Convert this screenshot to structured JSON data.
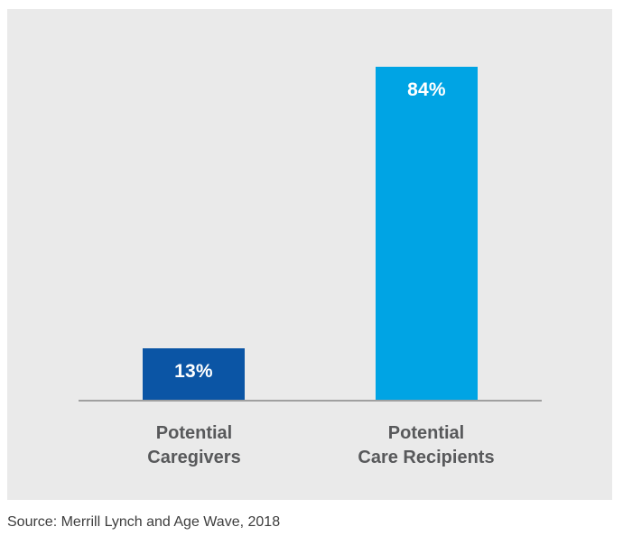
{
  "chart_data": {
    "type": "bar",
    "title": "",
    "xlabel": "",
    "ylabel": "",
    "categories": [
      "Potential Caregivers",
      "Potential Care Recipients"
    ],
    "category_lines": [
      [
        "Potential",
        "Caregivers"
      ],
      [
        "Potential",
        "Care Recipients"
      ]
    ],
    "values": [
      13,
      84
    ],
    "value_labels": [
      "13%",
      "84%"
    ],
    "bar_colors": [
      "#0b55a5",
      "#00a4e4"
    ],
    "ylim": [
      0,
      100
    ],
    "grid": false,
    "legend": "none",
    "axis": "x-axis baseline only, no ticks, no y-axis"
  },
  "source_caption": "Source: Merrill Lynch and Age Wave, 2018",
  "colors": {
    "page_background": "#ffffff",
    "panel_background": "#eaeaea",
    "bar_dark_blue": "#0b55a5",
    "bar_light_blue": "#00a4e4",
    "axis_line": "#a0a0a0",
    "category_label_text": "#58595b",
    "value_label_text": "#ffffff",
    "source_text": "#3d3d3d"
  }
}
